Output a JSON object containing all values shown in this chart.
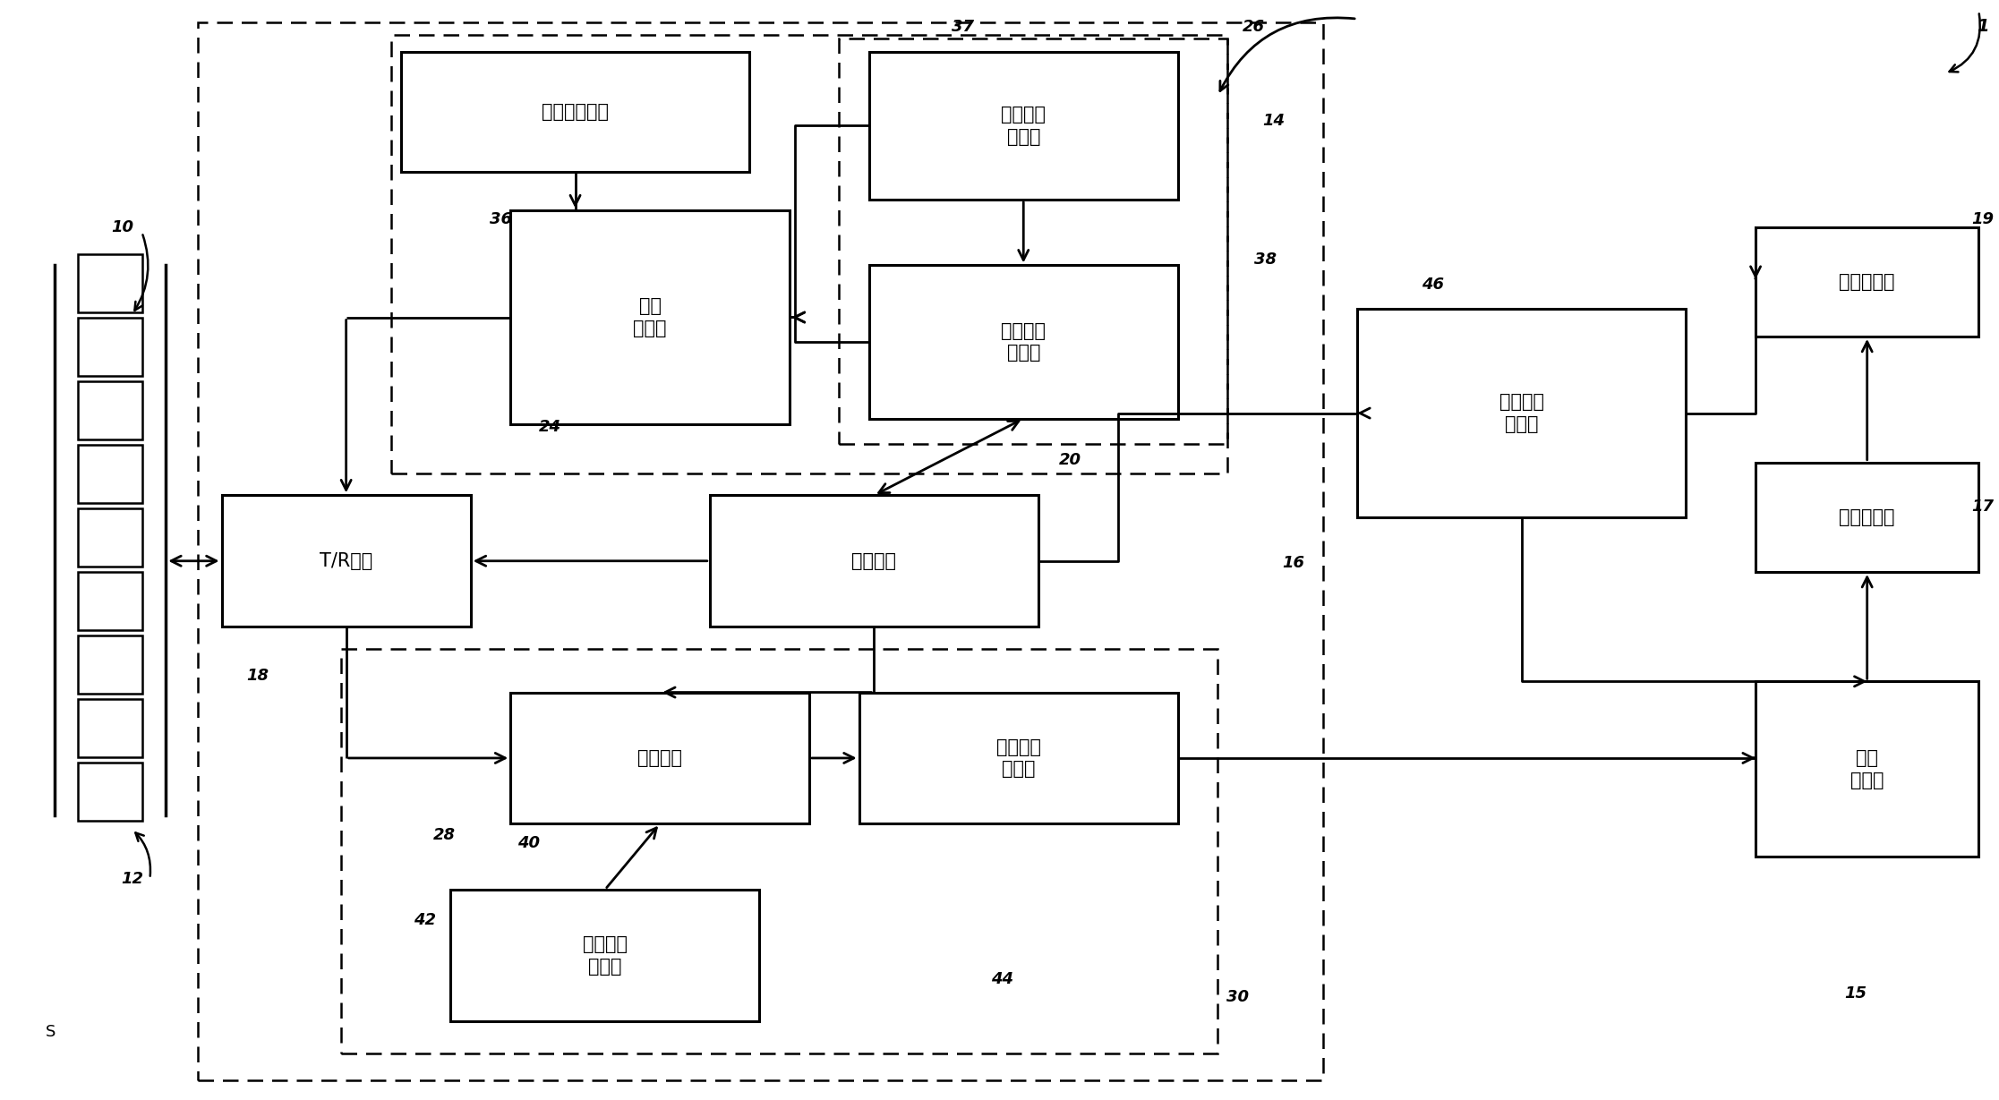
{
  "bg": "#ffffff",
  "blocks": {
    "apod": [
      0.2,
      0.045,
      0.175,
      0.11
    ],
    "pulse": [
      0.255,
      0.19,
      0.14,
      0.195
    ],
    "txfd": [
      0.435,
      0.045,
      0.155,
      0.135
    ],
    "txsm": [
      0.435,
      0.24,
      0.155,
      0.14
    ],
    "tr": [
      0.11,
      0.45,
      0.125,
      0.12
    ],
    "main": [
      0.355,
      0.45,
      0.165,
      0.12
    ],
    "rxch": [
      0.255,
      0.63,
      0.15,
      0.12
    ],
    "rxfd": [
      0.225,
      0.81,
      0.155,
      0.12
    ],
    "rxba": [
      0.43,
      0.63,
      0.16,
      0.12
    ],
    "pig": [
      0.68,
      0.28,
      0.165,
      0.19
    ],
    "disp": [
      0.88,
      0.205,
      0.112,
      0.1
    ],
    "vidp": [
      0.88,
      0.42,
      0.112,
      0.1
    ],
    "scan": [
      0.88,
      0.62,
      0.112,
      0.16
    ]
  },
  "labels_cn": {
    "apod": "变迹产生电路",
    "pulse": "脉冲\n发生器",
    "txfd": "发送聚焦\n延迟器",
    "txsm": "发送序列\n存储器",
    "tr": "T/R开关",
    "main": "主控制器",
    "rxch": "接收信道",
    "rxfd": "接收聚焦\n延迟器",
    "rxba": "接收波束\n加法器",
    "pig": "参数图像\n产生器",
    "disp": "显示监视器",
    "vidp": "视频处理器",
    "scan": "扫描\n转换器"
  }
}
